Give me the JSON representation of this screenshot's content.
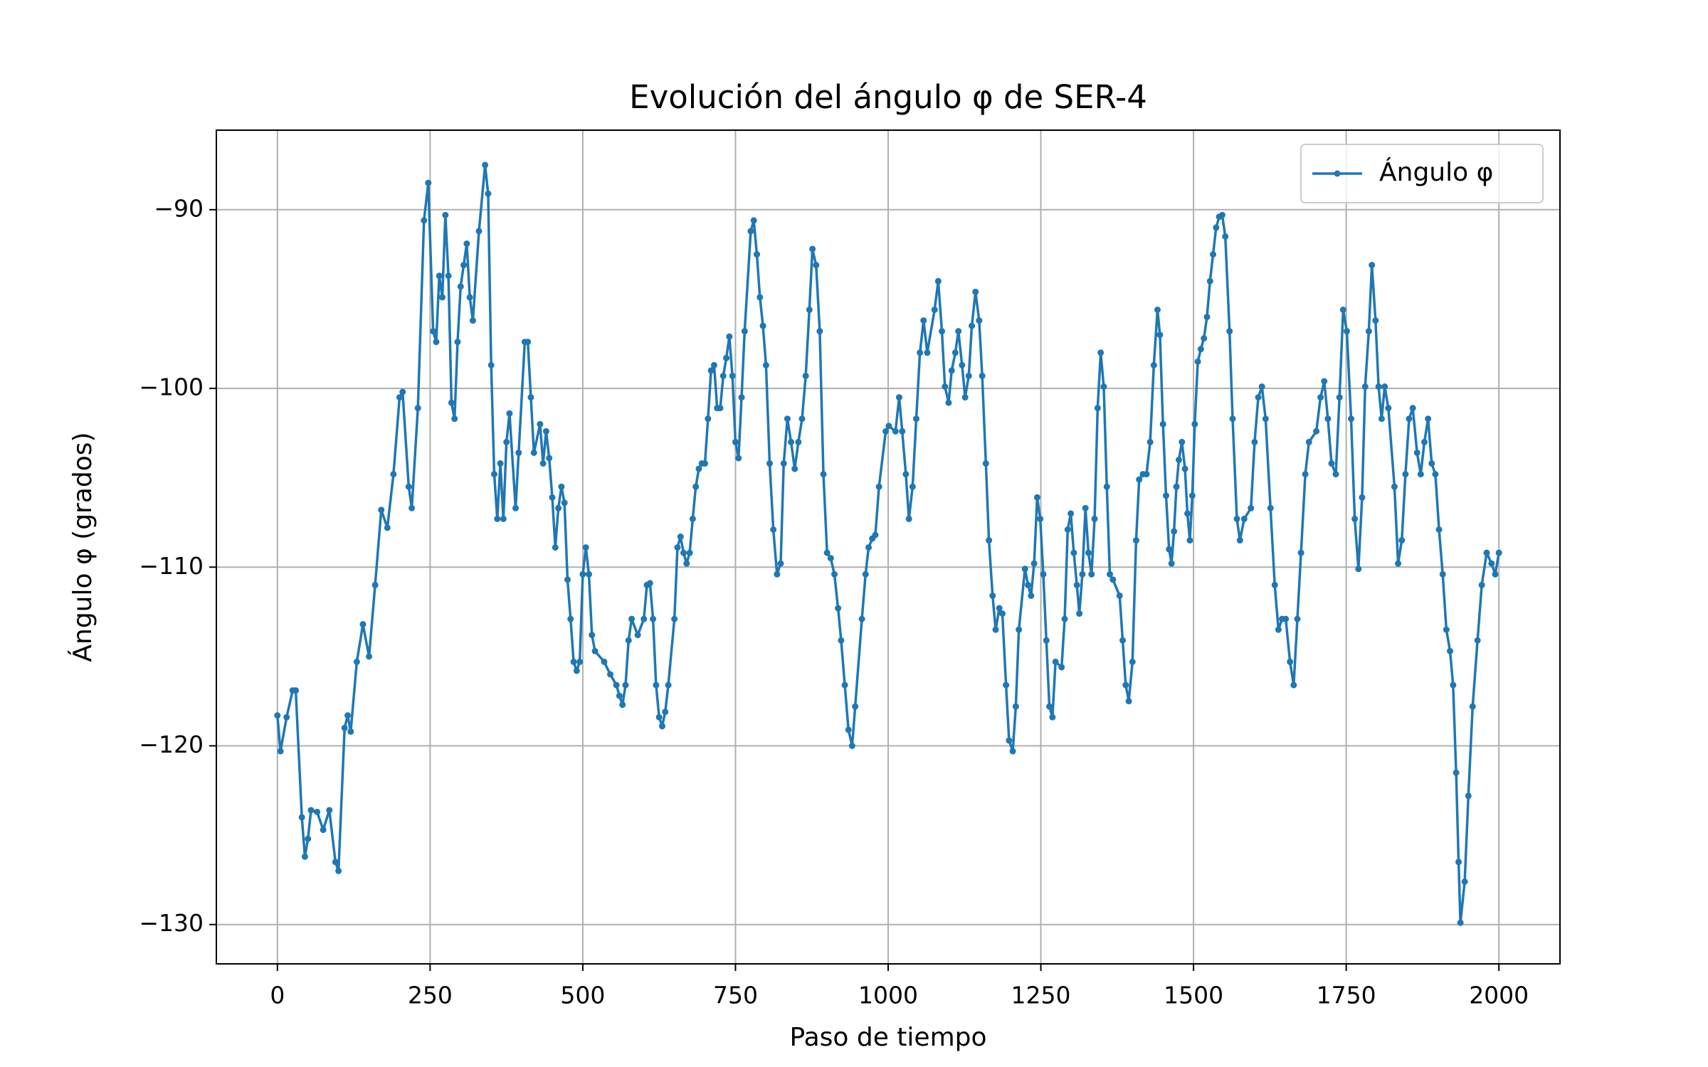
{
  "chart_data": {
    "type": "line",
    "title": "Evolución del ángulo φ de SER-4",
    "x_label": "Paso de tiempo",
    "y_label": "Ángulo φ (grados)",
    "x": [
      0,
      5,
      15,
      25,
      30,
      40,
      45,
      50,
      55,
      65,
      75,
      85,
      95,
      100,
      110,
      115,
      120,
      130,
      140,
      150,
      160,
      170,
      180,
      190,
      200,
      205,
      215,
      220,
      230,
      240,
      247,
      255,
      260,
      265,
      270,
      275,
      280,
      285,
      290,
      295,
      300,
      305,
      310,
      315,
      320,
      330,
      340,
      345,
      350,
      355,
      360,
      365,
      370,
      375,
      380,
      390,
      395,
      405,
      410,
      415,
      420,
      430,
      435,
      440,
      445,
      450,
      455,
      460,
      465,
      470,
      475,
      480,
      485,
      490,
      495,
      500,
      505,
      510,
      515,
      520,
      535,
      545,
      555,
      560,
      565,
      570,
      575,
      580,
      590,
      600,
      605,
      610,
      615,
      620,
      625,
      630,
      635,
      640,
      650,
      655,
      660,
      665,
      670,
      675,
      680,
      685,
      690,
      695,
      700,
      705,
      710,
      715,
      720,
      725,
      730,
      735,
      740,
      745,
      750,
      755,
      760,
      765,
      775,
      780,
      785,
      790,
      795,
      800,
      806,
      812,
      818,
      824,
      829,
      835,
      841,
      847,
      853,
      859,
      865,
      871,
      876,
      882,
      888,
      894,
      900,
      906,
      912,
      918,
      923,
      929,
      935,
      941,
      946,
      957,
      963,
      968,
      974,
      979,
      985,
      996,
      1001,
      1012,
      1018,
      1023,
      1029,
      1034,
      1040,
      1046,
      1052,
      1058,
      1064,
      1076,
      1082,
      1088,
      1093,
      1099,
      1104,
      1110,
      1115,
      1121,
      1126,
      1132,
      1137,
      1143,
      1149,
      1154,
      1160,
      1165,
      1171,
      1176,
      1182,
      1187,
      1193,
      1198,
      1204,
      1209,
      1214,
      1224,
      1229,
      1234,
      1239,
      1244,
      1249,
      1254,
      1259,
      1264,
      1269,
      1274,
      1284,
      1289,
      1294,
      1299,
      1304,
      1309,
      1313,
      1318,
      1323,
      1328,
      1333,
      1338,
      1343,
      1348,
      1353,
      1358,
      1363,
      1368,
      1379,
      1384,
      1389,
      1394,
      1400,
      1406,
      1411,
      1417,
      1423,
      1429,
      1435,
      1441,
      1445,
      1450,
      1455,
      1460,
      1464,
      1468,
      1472,
      1476,
      1481,
      1486,
      1490,
      1494,
      1498,
      1502,
      1507,
      1512,
      1517,
      1522,
      1527,
      1532,
      1537,
      1542,
      1547,
      1552,
      1559,
      1564,
      1571,
      1576,
      1583,
      1594,
      1600,
      1606,
      1612,
      1618,
      1626,
      1633,
      1639,
      1645,
      1651,
      1658,
      1664,
      1670,
      1676,
      1683,
      1689,
      1701,
      1708,
      1714,
      1720,
      1726,
      1733,
      1739,
      1745,
      1751,
      1758,
      1764,
      1770,
      1776,
      1781,
      1787,
      1792,
      1798,
      1803,
      1808,
      1813,
      1819,
      1829,
      1835,
      1841,
      1847,
      1853,
      1859,
      1866,
      1872,
      1878,
      1884,
      1890,
      1896,
      1902,
      1908,
      1914,
      1920,
      1925,
      1930,
      1934,
      1937,
      1944,
      1950,
      1957,
      1965,
      1972,
      1980,
      1988,
      1994,
      2000
    ],
    "series": [
      {
        "name": "Ángulo φ",
        "color": "#1f77b4",
        "values": [
          -118.3,
          -120.3,
          -118.4,
          -116.9,
          -116.9,
          -124,
          -126.2,
          -125.2,
          -123.6,
          -123.7,
          -124.7,
          -123.6,
          -126.5,
          -127,
          -119,
          -118.3,
          -119.2,
          -115.3,
          -113.2,
          -115,
          -111,
          -106.8,
          -107.8,
          -104.8,
          -100.5,
          -100.2,
          -105.5,
          -106.7,
          -101.1,
          -90.6,
          -88.5,
          -96.8,
          -97.4,
          -93.7,
          -94.9,
          -90.3,
          -93.7,
          -100.8,
          -101.7,
          -97.4,
          -94.3,
          -93.1,
          -91.9,
          -94.9,
          -96.2,
          -91.2,
          -87.5,
          -89.1,
          -98.7,
          -104.8,
          -107.3,
          -104.2,
          -107.3,
          -103,
          -101.4,
          -106.7,
          -103.6,
          -97.4,
          -97.4,
          -100.5,
          -103.6,
          -102,
          -104.2,
          -102.4,
          -103.9,
          -106.1,
          -108.9,
          -106.7,
          -105.5,
          -106.4,
          -110.7,
          -112.9,
          -115.3,
          -115.8,
          -115.3,
          -110.4,
          -108.9,
          -110.4,
          -113.8,
          -114.7,
          -115.3,
          -116,
          -116.6,
          -117.2,
          -117.7,
          -116.6,
          -114.1,
          -112.9,
          -113.8,
          -112.9,
          -111,
          -110.9,
          -112.9,
          -116.6,
          -118.4,
          -118.9,
          -118.1,
          -116.6,
          -112.9,
          -108.9,
          -108.3,
          -109.2,
          -109.8,
          -109.2,
          -107.3,
          -105.5,
          -104.5,
          -104.2,
          -104.2,
          -101.7,
          -99,
          -98.7,
          -101.1,
          -101.1,
          -99.3,
          -98.3,
          -97.1,
          -99.3,
          -103,
          -103.9,
          -100.5,
          -96.8,
          -91.2,
          -90.6,
          -92.5,
          -94.9,
          -96.5,
          -98.7,
          -104.2,
          -107.9,
          -110.4,
          -109.8,
          -104.2,
          -101.7,
          -103,
          -104.5,
          -103,
          -101.7,
          -99.3,
          -95.6,
          -92.2,
          -93.1,
          -96.8,
          -104.8,
          -109.2,
          -109.5,
          -110.4,
          -112.3,
          -114.1,
          -116.6,
          -119.1,
          -120,
          -117.8,
          -112.9,
          -110.4,
          -108.9,
          -108.4,
          -108.2,
          -105.5,
          -102.4,
          -102.1,
          -102.4,
          -100.5,
          -102.4,
          -104.8,
          -107.3,
          -105.5,
          -101.7,
          -98,
          -96.2,
          -98,
          -95.6,
          -94,
          -96.8,
          -99.9,
          -100.8,
          -99,
          -98,
          -96.8,
          -98.7,
          -100.5,
          -99.3,
          -96.5,
          -94.6,
          -96.2,
          -99.3,
          -104.2,
          -108.5,
          -111.6,
          -113.5,
          -112.3,
          -112.6,
          -116.6,
          -119.7,
          -120.3,
          -117.8,
          -113.5,
          -110.1,
          -111,
          -111.6,
          -109.8,
          -106.1,
          -107.3,
          -110.4,
          -114.1,
          -117.8,
          -118.4,
          -115.3,
          -115.6,
          -112.9,
          -107.9,
          -107,
          -109.2,
          -111,
          -112.6,
          -110.4,
          -106.7,
          -109.2,
          -110.4,
          -107.3,
          -101.1,
          -98,
          -99.9,
          -105.5,
          -110.4,
          -110.7,
          -111.6,
          -114.1,
          -116.6,
          -117.5,
          -115.3,
          -108.5,
          -105.1,
          -104.8,
          -104.8,
          -103,
          -98.7,
          -95.6,
          -97,
          -102,
          -106,
          -109,
          -109.8,
          -108,
          -105.5,
          -104,
          -103,
          -104.5,
          -107,
          -108.5,
          -106,
          -102,
          -98.5,
          -97.8,
          -97.2,
          -96,
          -94,
          -92.5,
          -91,
          -90.4,
          -90.3,
          -91.5,
          -96.8,
          -101.7,
          -107.3,
          -108.5,
          -107.3,
          -106.7,
          -103,
          -100.5,
          -99.9,
          -101.7,
          -106.7,
          -111,
          -113.5,
          -112.9,
          -112.9,
          -115.3,
          -116.6,
          -112.9,
          -109.2,
          -104.8,
          -103,
          -102.4,
          -100.5,
          -99.6,
          -101.7,
          -104.2,
          -104.8,
          -100.5,
          -95.6,
          -96.8,
          -101.7,
          -107.3,
          -110.1,
          -106.1,
          -99.9,
          -96.8,
          -93.1,
          -96.2,
          -99.9,
          -101.7,
          -99.9,
          -101.1,
          -105.5,
          -109.8,
          -108.5,
          -104.8,
          -101.7,
          -101.1,
          -103.6,
          -104.8,
          -103,
          -101.7,
          -104.2,
          -104.8,
          -107.9,
          -110.4,
          -113.5,
          -114.7,
          -116.6,
          -121.5,
          -126.5,
          -129.9,
          -127.6,
          -122.8,
          -117.8,
          -114.1,
          -111,
          -109.2,
          -109.8,
          -110.4,
          -109.2
        ]
      }
    ],
    "xlim": [
      -100,
      2100
    ],
    "xticks": [
      0,
      250,
      500,
      750,
      1000,
      1250,
      1500,
      1750,
      2000
    ],
    "ylim": [
      -132.2,
      -85.55
    ],
    "yticks": [
      {
        "value": -130,
        "label": "−130"
      },
      {
        "value": -120,
        "label": "−120"
      },
      {
        "value": -110,
        "label": "−110"
      },
      {
        "value": -100,
        "label": "−100"
      },
      {
        "value": -90,
        "label": "−90"
      }
    ],
    "grid": true,
    "legend": "upper right"
  }
}
